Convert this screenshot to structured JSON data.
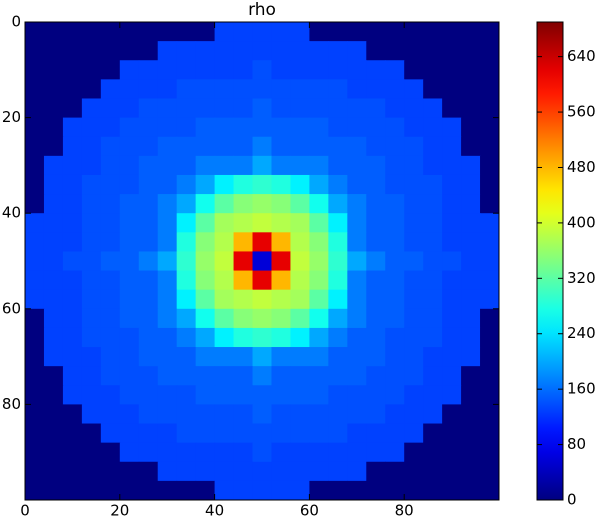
{
  "chart_data": {
    "type": "heatmap",
    "title": "rho",
    "colormap": "jet",
    "x": [
      2,
      6,
      10,
      14,
      18,
      22,
      26,
      30,
      34,
      38,
      42,
      46,
      50,
      54,
      58,
      62,
      66,
      70,
      74,
      78,
      82,
      86,
      90,
      94,
      98
    ],
    "y": [
      2,
      6,
      10,
      14,
      18,
      22,
      26,
      30,
      34,
      38,
      42,
      46,
      50,
      54,
      58,
      62,
      66,
      70,
      74,
      78,
      82,
      86,
      90,
      94,
      98
    ],
    "z": [
      [
        0,
        0,
        0,
        0,
        0,
        0,
        0,
        0,
        0,
        0,
        130,
        130,
        130,
        130,
        130,
        0,
        0,
        0,
        0,
        0,
        0,
        0,
        0,
        0,
        0
      ],
      [
        0,
        0,
        0,
        0,
        0,
        0,
        0,
        130,
        130,
        130,
        130,
        130,
        130,
        130,
        130,
        130,
        130,
        130,
        0,
        0,
        0,
        0,
        0,
        0,
        0
      ],
      [
        0,
        0,
        0,
        0,
        0,
        130,
        130,
        130,
        130,
        130,
        130,
        130,
        140,
        130,
        130,
        130,
        130,
        130,
        130,
        130,
        0,
        0,
        0,
        0,
        0
      ],
      [
        0,
        0,
        0,
        0,
        130,
        130,
        130,
        130,
        140,
        140,
        140,
        140,
        140,
        140,
        140,
        140,
        140,
        130,
        130,
        130,
        130,
        0,
        0,
        0,
        0
      ],
      [
        0,
        0,
        0,
        130,
        130,
        130,
        140,
        140,
        140,
        140,
        140,
        140,
        150,
        140,
        140,
        140,
        140,
        140,
        140,
        130,
        130,
        130,
        0,
        0,
        0
      ],
      [
        0,
        0,
        130,
        130,
        130,
        140,
        140,
        140,
        140,
        150,
        150,
        150,
        150,
        150,
        150,
        150,
        140,
        140,
        140,
        140,
        130,
        130,
        130,
        0,
        0
      ],
      [
        0,
        0,
        130,
        130,
        140,
        140,
        140,
        150,
        150,
        150,
        150,
        150,
        170,
        150,
        150,
        150,
        150,
        150,
        140,
        140,
        140,
        130,
        130,
        0,
        0
      ],
      [
        0,
        130,
        130,
        130,
        140,
        140,
        150,
        150,
        150,
        170,
        170,
        170,
        200,
        170,
        170,
        170,
        150,
        150,
        150,
        140,
        140,
        130,
        130,
        130,
        0
      ],
      [
        0,
        130,
        130,
        140,
        140,
        140,
        150,
        150,
        170,
        200,
        250,
        280,
        290,
        280,
        250,
        200,
        170,
        150,
        150,
        140,
        140,
        140,
        130,
        130,
        0
      ],
      [
        0,
        130,
        130,
        140,
        140,
        150,
        150,
        170,
        200,
        270,
        320,
        350,
        360,
        350,
        320,
        270,
        200,
        170,
        150,
        150,
        140,
        140,
        130,
        130,
        0
      ],
      [
        130,
        130,
        130,
        140,
        140,
        150,
        150,
        170,
        250,
        320,
        370,
        380,
        390,
        380,
        370,
        320,
        250,
        170,
        150,
        150,
        140,
        140,
        130,
        130,
        130
      ],
      [
        130,
        130,
        130,
        140,
        140,
        150,
        150,
        170,
        280,
        350,
        380,
        480,
        620,
        480,
        380,
        350,
        280,
        170,
        150,
        150,
        140,
        140,
        130,
        130,
        130
      ],
      [
        130,
        130,
        140,
        140,
        150,
        150,
        170,
        200,
        290,
        360,
        390,
        620,
        60,
        620,
        390,
        360,
        290,
        200,
        170,
        150,
        150,
        140,
        140,
        130,
        130
      ],
      [
        130,
        130,
        130,
        140,
        140,
        150,
        150,
        170,
        280,
        350,
        380,
        480,
        620,
        480,
        380,
        350,
        280,
        170,
        150,
        150,
        140,
        140,
        130,
        130,
        130
      ],
      [
        130,
        130,
        130,
        140,
        140,
        150,
        150,
        170,
        250,
        320,
        370,
        380,
        390,
        380,
        370,
        320,
        250,
        170,
        150,
        150,
        140,
        140,
        130,
        130,
        130
      ],
      [
        0,
        130,
        130,
        140,
        140,
        150,
        150,
        170,
        200,
        270,
        320,
        350,
        360,
        350,
        320,
        270,
        200,
        170,
        150,
        150,
        140,
        140,
        130,
        130,
        0
      ],
      [
        0,
        130,
        130,
        140,
        140,
        140,
        150,
        150,
        170,
        200,
        250,
        280,
        290,
        280,
        250,
        200,
        170,
        150,
        150,
        140,
        140,
        140,
        130,
        130,
        0
      ],
      [
        0,
        130,
        130,
        130,
        140,
        140,
        150,
        150,
        150,
        170,
        170,
        170,
        200,
        170,
        170,
        170,
        150,
        150,
        150,
        140,
        140,
        130,
        130,
        130,
        0
      ],
      [
        0,
        0,
        130,
        130,
        140,
        140,
        140,
        150,
        150,
        150,
        150,
        150,
        170,
        150,
        150,
        150,
        150,
        150,
        140,
        140,
        140,
        130,
        130,
        0,
        0
      ],
      [
        0,
        0,
        130,
        130,
        130,
        140,
        140,
        140,
        140,
        150,
        150,
        150,
        150,
        150,
        150,
        150,
        140,
        140,
        140,
        140,
        130,
        130,
        130,
        0,
        0
      ],
      [
        0,
        0,
        0,
        130,
        130,
        130,
        140,
        140,
        140,
        140,
        140,
        140,
        150,
        140,
        140,
        140,
        140,
        140,
        140,
        130,
        130,
        130,
        0,
        0,
        0
      ],
      [
        0,
        0,
        0,
        0,
        130,
        130,
        130,
        130,
        140,
        140,
        140,
        140,
        140,
        140,
        140,
        140,
        140,
        130,
        130,
        130,
        130,
        0,
        0,
        0,
        0
      ],
      [
        0,
        0,
        0,
        0,
        0,
        130,
        130,
        130,
        130,
        130,
        130,
        130,
        140,
        130,
        130,
        130,
        130,
        130,
        130,
        130,
        0,
        0,
        0,
        0,
        0
      ],
      [
        0,
        0,
        0,
        0,
        0,
        0,
        0,
        130,
        130,
        130,
        130,
        130,
        130,
        130,
        130,
        130,
        130,
        130,
        0,
        0,
        0,
        0,
        0,
        0,
        0
      ],
      [
        0,
        0,
        0,
        0,
        0,
        0,
        0,
        0,
        0,
        0,
        130,
        130,
        130,
        130,
        130,
        0,
        0,
        0,
        0,
        0,
        0,
        0,
        0,
        0,
        0
      ]
    ],
    "xlim": [
      0,
      100
    ],
    "ylim": [
      0,
      100
    ],
    "y_inverted": true,
    "xticks": [
      0,
      20,
      40,
      60,
      80
    ],
    "yticks": [
      0,
      20,
      40,
      60,
      80
    ],
    "clim": [
      0,
      690
    ],
    "cticks": [
      0,
      80,
      160,
      240,
      320,
      400,
      480,
      560,
      640
    ]
  }
}
